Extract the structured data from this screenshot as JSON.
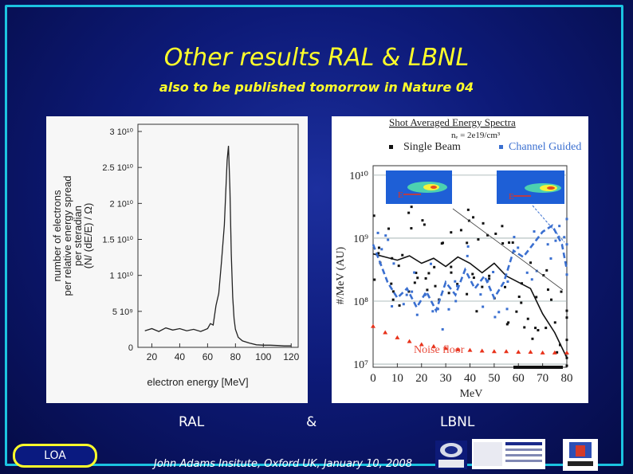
{
  "slide": {
    "title": "Other results RAL & LBNL",
    "subtitle": "also to be published tomorrow in Nature 04",
    "label_left": "RAL",
    "label_mid": "&",
    "label_right": "LBNL",
    "footer": "John Adams Insitute, Oxford UK, January 10, 2008",
    "badge": "LOA",
    "colors": {
      "title": "#ffff2a",
      "frame": "#1bc3e0",
      "background": "#0d1a78"
    }
  },
  "chart_data": [
    {
      "type": "line",
      "xlabel": "electron energy [MeV]",
      "ylabel_lines": [
        "number of electrons",
        "per relative energy spread",
        "per steradian",
        "(N/ (dE/E) / Ω)"
      ],
      "x_ticks": [
        "20",
        "40",
        "60",
        "80",
        "100",
        "120"
      ],
      "y_ticks": [
        "0",
        "5 10⁹",
        "1 10¹⁰",
        "1.5 10¹⁰",
        "2 10¹⁰",
        "2.5 10¹⁰",
        "3 10¹⁰"
      ],
      "xlim": [
        10,
        125
      ],
      "ylim": [
        0,
        31000000000.0
      ],
      "x": [
        15,
        20,
        25,
        30,
        35,
        40,
        45,
        50,
        55,
        60,
        62,
        64,
        66,
        68,
        70,
        72,
        74,
        75,
        76,
        77,
        78,
        79,
        80,
        82,
        85,
        90,
        95,
        100,
        105,
        110,
        115,
        120
      ],
      "y": [
        2300000000.0,
        2600000000.0,
        2200000000.0,
        2700000000.0,
        2400000000.0,
        2600000000.0,
        2300000000.0,
        2500000000.0,
        2200000000.0,
        2600000000.0,
        3300000000.0,
        3100000000.0,
        5800000000.0,
        7500000000.0,
        12000000000.0,
        17000000000.0,
        26000000000.0,
        28000000000.0,
        22000000000.0,
        13000000000.0,
        7000000000.0,
        4000000000.0,
        2500000000.0,
        1400000000.0,
        900000000.0,
        600000000.0,
        350000000.0,
        300000000.0,
        300000000.0,
        250000000.0,
        200000000.0,
        200000000.0
      ]
    },
    {
      "type": "scatter",
      "title": "Shot Averaged Energy Spectra",
      "density_note": "nₑ = 2e19/cm³",
      "legend": [
        "Single Beam",
        "Channel Guided"
      ],
      "inset_marker": "E",
      "annotation": "Noise floor",
      "xlabel": "MeV",
      "ylabel": "#/MeV (AU)",
      "x_ticks": [
        "0",
        "10",
        "20",
        "30",
        "40",
        "50",
        "60",
        "70",
        "80"
      ],
      "y_ticks": [
        "10⁷",
        "10⁸",
        "10⁹",
        "10¹⁰"
      ],
      "xlim": [
        0,
        80
      ],
      "ylim_log10": [
        6.95,
        10.15
      ],
      "series": [
        {
          "name": "Single Beam",
          "x": [
            0,
            5,
            10,
            15,
            20,
            25,
            30,
            35,
            40,
            45,
            50,
            55,
            60,
            65,
            70,
            75,
            80
          ],
          "y": [
            8.75,
            8.7,
            8.65,
            8.72,
            8.6,
            8.68,
            8.55,
            8.7,
            8.6,
            8.45,
            8.6,
            8.4,
            8.3,
            8.2,
            7.8,
            7.5,
            7.1
          ]
        },
        {
          "name": "Channel Guided",
          "x": [
            0,
            3,
            6,
            10,
            14,
            18,
            22,
            26,
            30,
            34,
            38,
            42,
            46,
            50,
            54,
            58,
            62,
            66,
            70,
            74,
            78,
            80
          ],
          "y": [
            8.9,
            8.6,
            8.3,
            8.05,
            8.2,
            7.9,
            8.15,
            7.85,
            8.3,
            8.1,
            8.5,
            8.2,
            8.4,
            8.05,
            8.3,
            8.8,
            8.7,
            8.9,
            9.1,
            9.2,
            8.9,
            8.5
          ]
        },
        {
          "name": "Noise floor",
          "x": [
            0,
            5,
            10,
            15,
            20,
            25,
            30,
            35,
            40,
            45,
            50,
            55,
            60,
            65,
            70,
            75,
            80
          ],
          "y": [
            7.6,
            7.5,
            7.42,
            7.36,
            7.31,
            7.28,
            7.25,
            7.23,
            7.22,
            7.21,
            7.2,
            7.2,
            7.19,
            7.19,
            7.18,
            7.18,
            7.18
          ]
        }
      ]
    }
  ]
}
